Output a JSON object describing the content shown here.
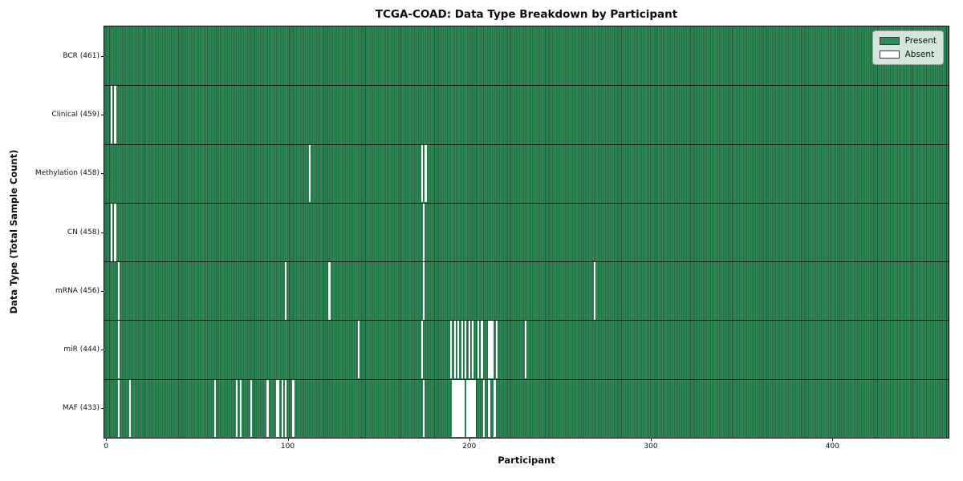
{
  "chart_data": {
    "type": "heatmap",
    "title": "TCGA-COAD: Data Type Breakdown by Participant",
    "xlabel": "Participant",
    "ylabel": "Data Type (Total Sample Count)",
    "x_ticks": [
      0,
      100,
      200,
      300,
      400
    ],
    "xlim": [
      -1,
      464
    ],
    "n_participants": 461,
    "grid": false,
    "legend_position": "upper right",
    "colors": {
      "present": "#2e8b57",
      "present_edge": "#1c5634",
      "absent": "#ffffff",
      "separator": "#000000"
    },
    "legend": [
      {
        "label": "Present",
        "color": "#2e8b57"
      },
      {
        "label": "Absent",
        "color": "#ffffff"
      }
    ],
    "rows": [
      {
        "label": "BCR (461)",
        "data_type": "BCR",
        "present_count": 461,
        "absent": []
      },
      {
        "label": "Clinical (459)",
        "data_type": "Clinical",
        "present_count": 459,
        "absent": [
          3,
          5
        ]
      },
      {
        "label": "Methylation (458)",
        "data_type": "Methylation",
        "present_count": 458,
        "absent": [
          112,
          174,
          176
        ]
      },
      {
        "label": "CN (458)",
        "data_type": "CN",
        "present_count": 458,
        "absent": [
          3,
          5,
          175
        ]
      },
      {
        "label": "mRNA (456)",
        "data_type": "mRNA",
        "present_count": 456,
        "absent": [
          7,
          99,
          123,
          175,
          269
        ]
      },
      {
        "label": "miR (444)",
        "data_type": "miR",
        "present_count": 444,
        "absent": [
          7,
          139,
          174,
          190,
          192,
          194,
          196,
          198,
          200,
          202,
          205,
          207,
          211,
          212,
          213,
          215,
          231
        ]
      },
      {
        "label": "MAF (433)",
        "data_type": "MAF",
        "present_count": 433,
        "absent": [
          7,
          13,
          60,
          72,
          74,
          80,
          89,
          94,
          95,
          97,
          99,
          103,
          175,
          191,
          192,
          193,
          194,
          195,
          196,
          197,
          199,
          200,
          201,
          202,
          203,
          208,
          211,
          214
        ]
      }
    ]
  }
}
